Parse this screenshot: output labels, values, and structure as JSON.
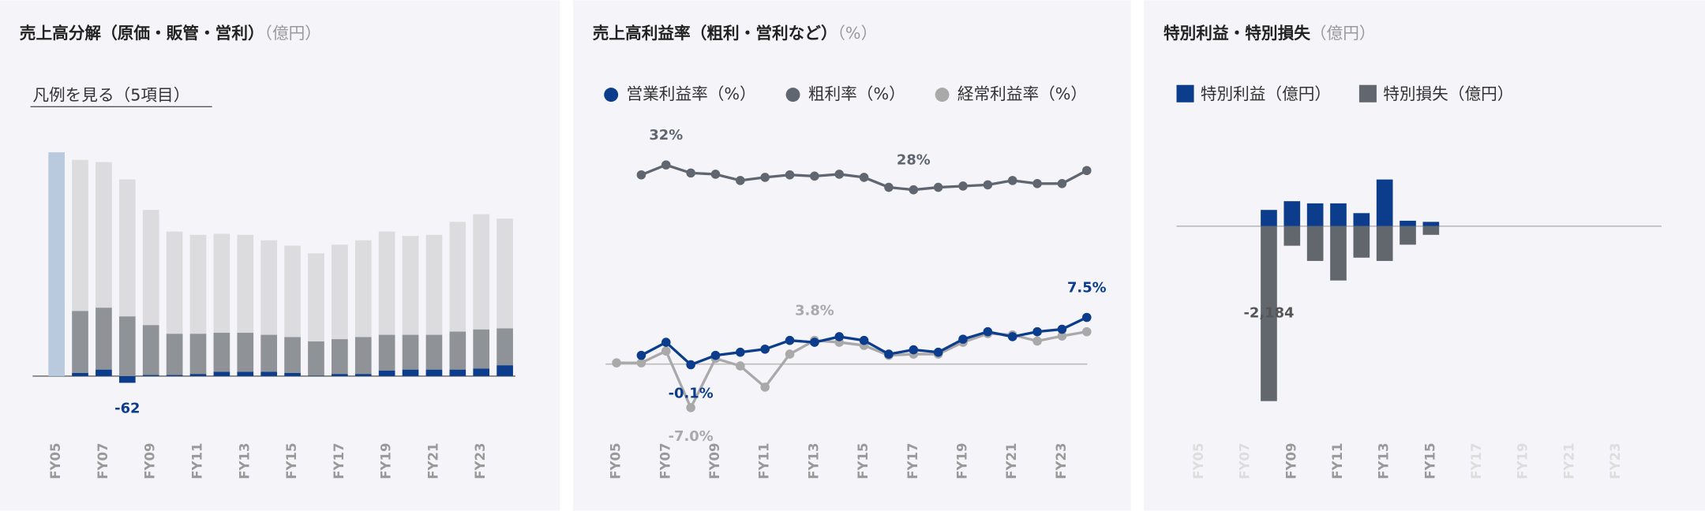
{
  "chart_data": [
    {
      "type": "bar",
      "title": "売上高分解（原価・販管・営利）",
      "unit": "（億円）",
      "legend_toggle": "凡例を見る（5項目）",
      "categories": [
        "FY05",
        null,
        "FY07",
        null,
        "FY09",
        null,
        "FY11",
        null,
        "FY13",
        null,
        "FY15",
        null,
        "FY17",
        null,
        "FY19",
        null,
        "FY21",
        null,
        "FY23",
        null
      ],
      "ylim": [
        -500,
        2100
      ],
      "series": [
        {
          "color": "#0b3d8c",
          "values": [
            null,
            30,
            60,
            -62,
            10,
            10,
            20,
            40,
            40,
            40,
            30,
            5,
            20,
            20,
            50,
            60,
            60,
            60,
            70,
            100
          ],
          "value_labels": [
            null,
            null,
            null,
            "-62",
            null,
            null,
            null,
            null,
            null,
            null,
            null,
            null,
            null,
            null,
            null,
            null,
            null,
            null,
            null,
            null
          ]
        },
        {
          "color": "#8f9297",
          "values": [
            null,
            570,
            570,
            550,
            460,
            380,
            370,
            360,
            360,
            340,
            330,
            315,
            320,
            340,
            330,
            320,
            320,
            350,
            360,
            340
          ]
        },
        {
          "color": "#dcdcde",
          "values": [
            null,
            1390,
            1340,
            1260,
            1060,
            940,
            910,
            910,
            900,
            870,
            840,
            810,
            870,
            890,
            950,
            910,
            920,
            1010,
            1060,
            1010
          ]
        },
        {
          "color": "#b9c9de",
          "values": [
            2060,
            null,
            null,
            null,
            null,
            null,
            null,
            null,
            null,
            null,
            null,
            null,
            null,
            null,
            null,
            null,
            null,
            null,
            null,
            null
          ]
        }
      ]
    },
    {
      "type": "line",
      "title": "売上高利益率（粗利・営利など）",
      "unit": "（%）",
      "categories": [
        "FY05",
        null,
        "FY07",
        null,
        "FY09",
        null,
        "FY11",
        null,
        "FY13",
        null,
        "FY15",
        null,
        "FY17",
        null,
        "FY19",
        null,
        "FY21",
        null,
        "FY23",
        null
      ],
      "ylim": [
        -11.3,
        37.5
      ],
      "series": [
        {
          "name": "営業利益率（%）",
          "color": "#0b3d8c",
          "values": [
            null,
            1.4,
            3.5,
            -0.1,
            1.4,
            1.9,
            2.4,
            3.8,
            3.5,
            4.4,
            3.8,
            1.6,
            2.3,
            1.9,
            4.0,
            5.2,
            4.4,
            5.2,
            5.6,
            7.5
          ],
          "value_labels": [
            null,
            null,
            null,
            "-0.1%",
            null,
            null,
            null,
            null,
            null,
            null,
            null,
            null,
            null,
            null,
            null,
            null,
            null,
            null,
            null,
            "7.5%"
          ]
        },
        {
          "name": "粗利率（%）",
          "color": "#5f6670",
          "values": [
            null,
            30.4,
            32,
            30.7,
            30.5,
            29.5,
            30.0,
            30.4,
            30.2,
            30.5,
            30.0,
            28.4,
            28,
            28.4,
            28.6,
            28.8,
            29.5,
            29.0,
            29.0,
            31.1
          ],
          "value_labels": [
            null,
            null,
            "32%",
            null,
            null,
            null,
            null,
            null,
            null,
            null,
            null,
            null,
            "28%",
            null,
            null,
            null,
            null,
            null,
            null,
            null
          ]
        },
        {
          "name": "経常利益率（%）",
          "color": "#a9a9a9",
          "values": [
            0.2,
            0.2,
            2.1,
            -7.0,
            0.9,
            -0.3,
            -3.7,
            1.6,
            3.8,
            3.5,
            3.0,
            1.4,
            1.6,
            1.6,
            3.5,
            4.9,
            4.7,
            3.7,
            4.5,
            5.2
          ],
          "value_labels": [
            null,
            null,
            null,
            "-7.0%",
            null,
            null,
            null,
            null,
            "3.8%",
            null,
            null,
            null,
            null,
            null,
            null,
            null,
            null,
            null,
            null,
            null
          ]
        }
      ]
    },
    {
      "type": "bar",
      "title": "特別利益・特別損失",
      "unit": "（億円）",
      "categories": [
        "FY05",
        null,
        "FY07",
        null,
        "FY09",
        null,
        "FY11",
        null,
        "FY13",
        null,
        "FY15",
        null,
        "FY17",
        null,
        "FY19",
        null,
        "FY21",
        null,
        "FY23",
        null
      ],
      "ylim": [
        -2600,
        1050
      ],
      "series": [
        {
          "name": "特別利益（億円）",
          "color": "#0b3d8c",
          "values": [
            null,
            null,
            null,
            203,
            312,
            285,
            285,
            163,
            583,
            68,
            54,
            null,
            null,
            null,
            null,
            null,
            null,
            null,
            null,
            null
          ]
        },
        {
          "name": "特別損失（億円）",
          "color": "#62666d",
          "values": [
            null,
            null,
            null,
            -2184,
            -244,
            -434,
            -678,
            -393,
            -434,
            -231,
            -108,
            null,
            null,
            null,
            null,
            null,
            null,
            null,
            null,
            null
          ],
          "value_labels": [
            null,
            null,
            null,
            "-2,184",
            null,
            null,
            null,
            null,
            null,
            null,
            null,
            null,
            null,
            null,
            null,
            null,
            null,
            null,
            null,
            null
          ]
        }
      ]
    }
  ]
}
